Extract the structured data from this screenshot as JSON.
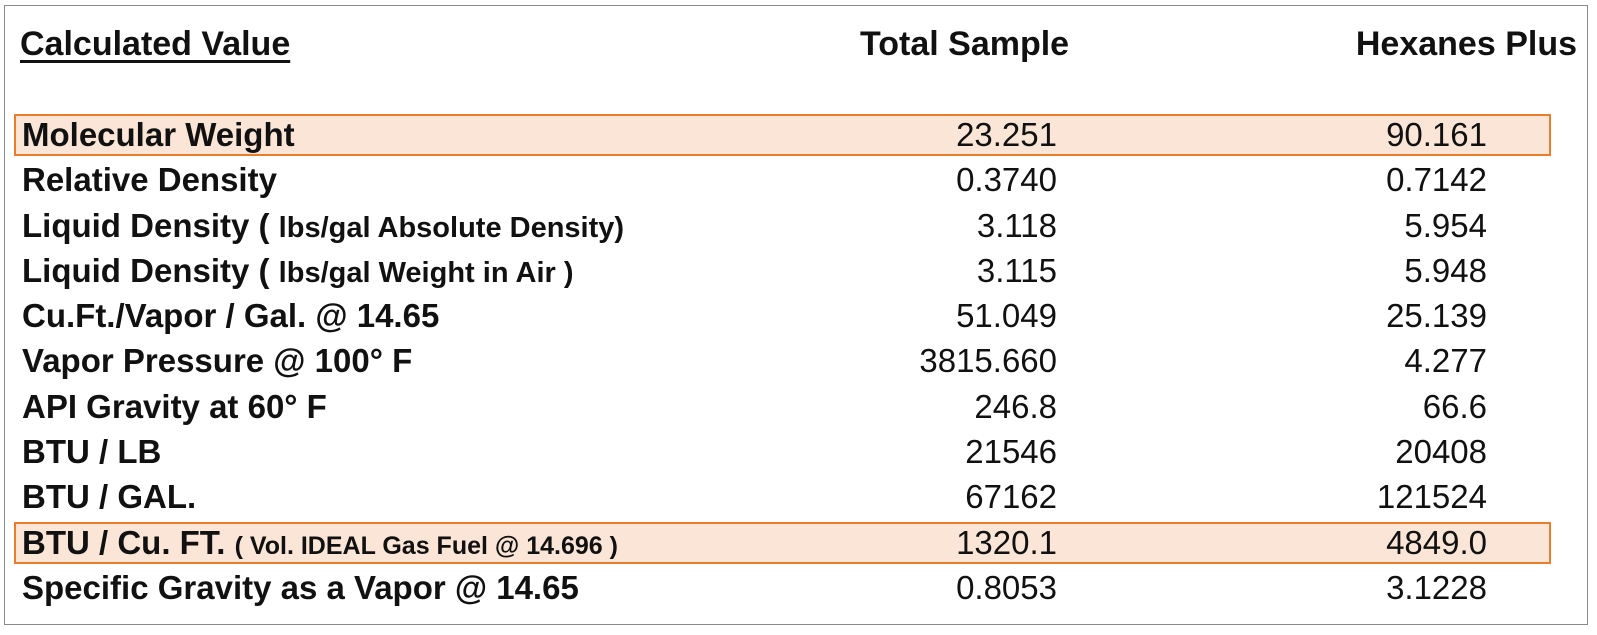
{
  "header": {
    "label": "Calculated Value",
    "total": "Total Sample",
    "hexanes": "Hexanes Plus"
  },
  "highlight_color": "#fbe5d6",
  "highlight_border_color": "#e97d2c",
  "rows": [
    {
      "label": "Molecular Weight",
      "sub": "",
      "total": "23.251",
      "hexanes": "90.161",
      "highlighted": true
    },
    {
      "label": "Relative Density",
      "sub": "",
      "total": "0.3740",
      "hexanes": "0.7142",
      "highlighted": false
    },
    {
      "label": "Liquid Density (",
      "sub": "lbs/gal Absolute Density)",
      "total": "3.118",
      "hexanes": "5.954",
      "highlighted": false
    },
    {
      "label": "Liquid Density (",
      "sub": "lbs/gal Weight in Air )",
      "total": "3.115",
      "hexanes": "5.948",
      "highlighted": false
    },
    {
      "label": "Cu.Ft./Vapor / Gal. @ 14.65",
      "sub": "",
      "total": "51.049",
      "hexanes": "25.139",
      "highlighted": false
    },
    {
      "label": "Vapor Pressure @ 100° F",
      "sub": "",
      "total": "3815.660",
      "hexanes": "4.277",
      "highlighted": false
    },
    {
      "label": "API Gravity at 60° F",
      "sub": "",
      "total": "246.8",
      "hexanes": "66.6",
      "highlighted": false
    },
    {
      "label": "BTU / LB",
      "sub": "",
      "total": "21546",
      "hexanes": "20408",
      "highlighted": false
    },
    {
      "label": "BTU / GAL.",
      "sub": "",
      "total": "67162",
      "hexanes": "121524",
      "highlighted": false
    },
    {
      "label": "BTU / Cu. FT.",
      "sub": "( Vol. IDEAL Gas Fuel @ 14.696 )",
      "total": "1320.1",
      "hexanes": "4849.0",
      "highlighted": true
    },
    {
      "label": "Specific Gravity as a Vapor @ 14.65",
      "sub": "",
      "total": "0.8053",
      "hexanes": "3.1228",
      "highlighted": false
    }
  ]
}
